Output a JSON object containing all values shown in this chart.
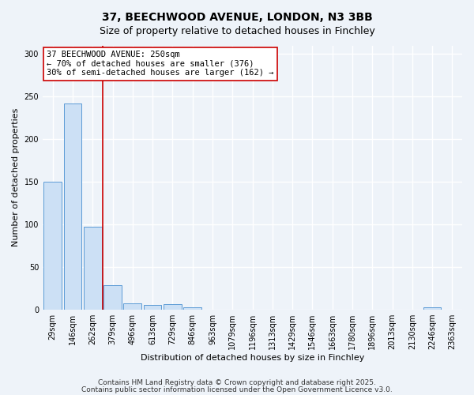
{
  "title_line1": "37, BEECHWOOD AVENUE, LONDON, N3 3BB",
  "title_line2": "Size of property relative to detached houses in Finchley",
  "xlabel": "Distribution of detached houses by size in Finchley",
  "ylabel": "Number of detached properties",
  "bin_labels": [
    "29sqm",
    "146sqm",
    "262sqm",
    "379sqm",
    "496sqm",
    "613sqm",
    "729sqm",
    "846sqm",
    "963sqm",
    "1079sqm",
    "1196sqm",
    "1313sqm",
    "1429sqm",
    "1546sqm",
    "1663sqm",
    "1780sqm",
    "1896sqm",
    "2013sqm",
    "2130sqm",
    "2246sqm",
    "2363sqm"
  ],
  "bin_values": [
    150,
    242,
    97,
    28,
    7,
    5,
    6,
    2,
    0,
    0,
    0,
    0,
    0,
    0,
    0,
    0,
    0,
    0,
    0,
    2,
    0
  ],
  "bar_color": "#cce0f5",
  "bar_edge_color": "#5b9bd5",
  "vline_x": 2.5,
  "vline_color": "#cc0000",
  "annotation_text": "37 BEECHWOOD AVENUE: 250sqm\n← 70% of detached houses are smaller (376)\n30% of semi-detached houses are larger (162) →",
  "annotation_box_color": "#ffffff",
  "annotation_box_edge": "#cc0000",
  "ylim": [
    0,
    310
  ],
  "yticks": [
    0,
    50,
    100,
    150,
    200,
    250,
    300
  ],
  "background_color": "#eef3f9",
  "grid_color": "#ffffff",
  "footer_line1": "Contains HM Land Registry data © Crown copyright and database right 2025.",
  "footer_line2": "Contains public sector information licensed under the Open Government Licence v3.0."
}
